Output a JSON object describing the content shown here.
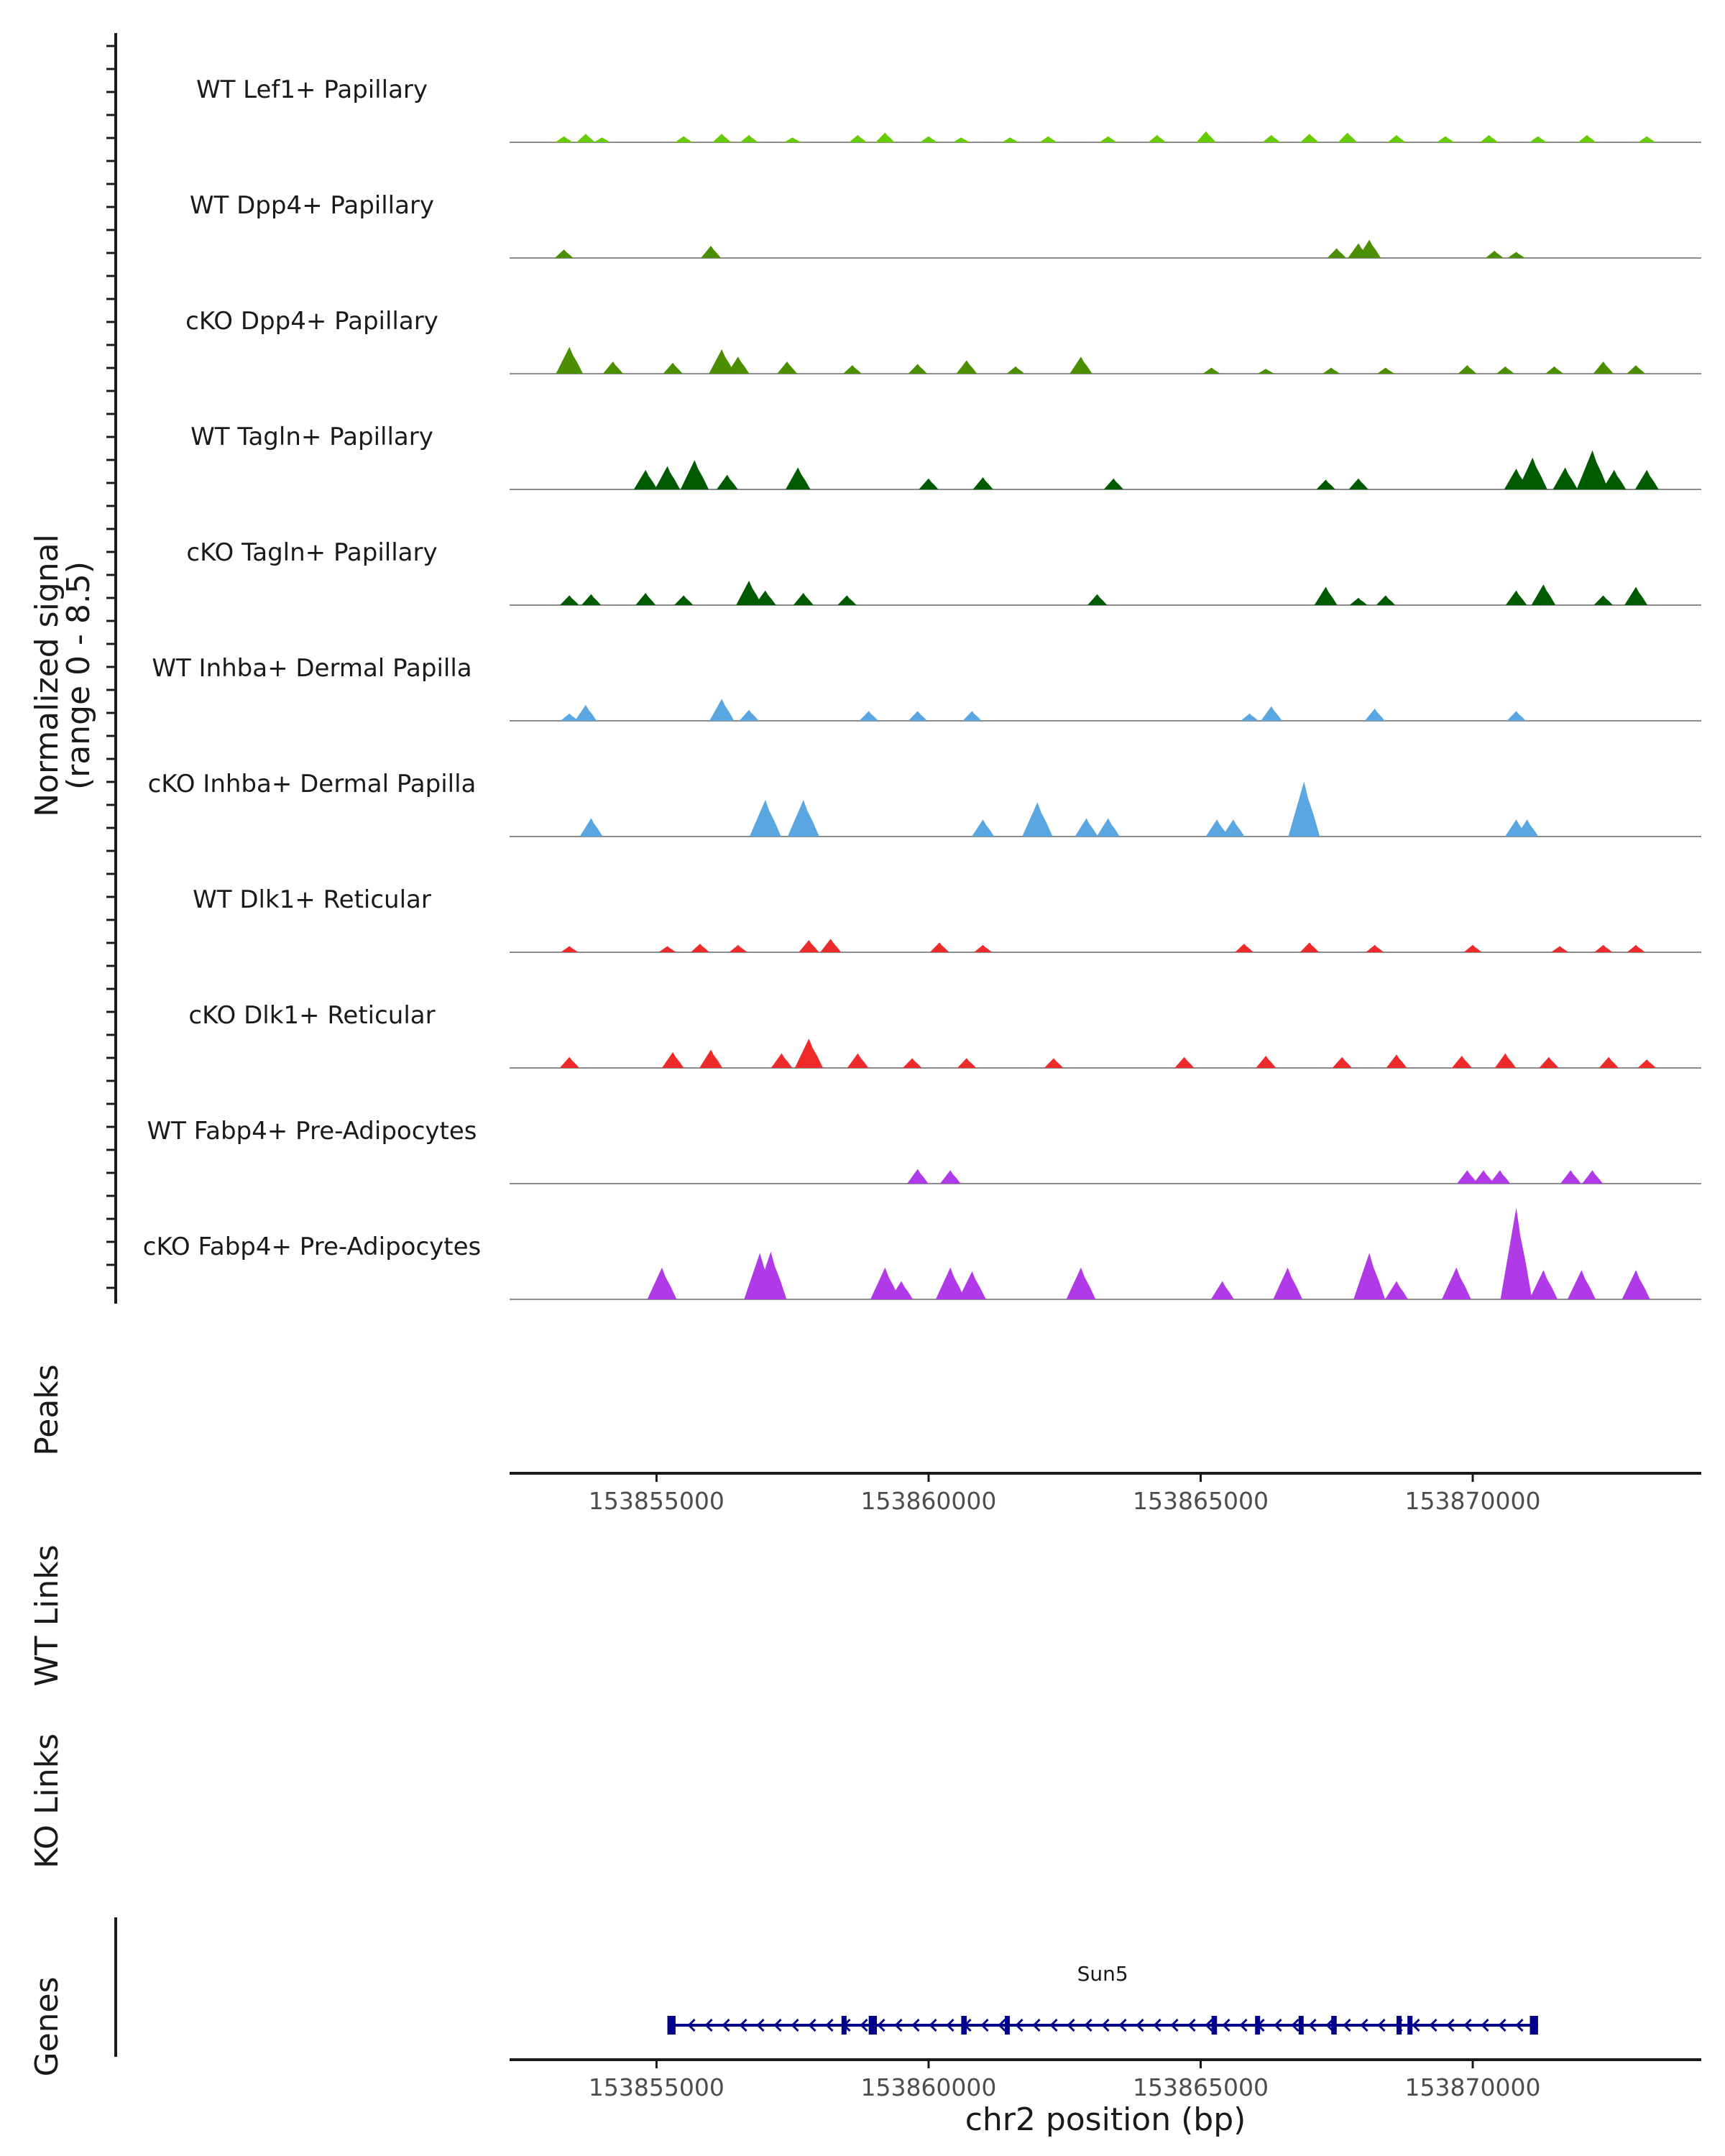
{
  "chart_data": {
    "type": "coverage",
    "ylabel_line1": "Normalized signal",
    "ylabel_line2": "(range 0 - 8.5)",
    "ylim": [
      0,
      8.5
    ],
    "xlim": [
      153852300,
      153874200
    ],
    "xlabel": "chr2 position (bp)",
    "x_ticks": [
      153855000,
      153860000,
      153865000,
      153870000
    ],
    "x_tick_labels": [
      "153855000",
      "153860000",
      "153865000",
      "153870000"
    ],
    "tracks": [
      {
        "name": "WT Lef1+ Papillary",
        "color": "#66cc00",
        "peaks": [
          [
            153853300,
            0.5
          ],
          [
            153853700,
            0.7
          ],
          [
            153854000,
            0.4
          ],
          [
            153855500,
            0.5
          ],
          [
            153856200,
            0.7
          ],
          [
            153856700,
            0.6
          ],
          [
            153857500,
            0.4
          ],
          [
            153858700,
            0.6
          ],
          [
            153859200,
            0.8
          ],
          [
            153860000,
            0.5
          ],
          [
            153860600,
            0.4
          ],
          [
            153861500,
            0.4
          ],
          [
            153862200,
            0.5
          ],
          [
            153863300,
            0.5
          ],
          [
            153864200,
            0.6
          ],
          [
            153865100,
            0.9
          ],
          [
            153866300,
            0.6
          ],
          [
            153867000,
            0.7
          ],
          [
            153867700,
            0.8
          ],
          [
            153868600,
            0.6
          ],
          [
            153869500,
            0.5
          ],
          [
            153870300,
            0.6
          ],
          [
            153871200,
            0.5
          ],
          [
            153872100,
            0.6
          ],
          [
            153873200,
            0.5
          ]
        ]
      },
      {
        "name": "WT Dpp4+ Papillary",
        "color": "#4b8f00",
        "peaks": [
          [
            153853300,
            0.7
          ],
          [
            153856000,
            1.0
          ],
          [
            153867500,
            0.8
          ],
          [
            153867900,
            1.2
          ],
          [
            153868100,
            1.5
          ],
          [
            153870400,
            0.6
          ],
          [
            153870800,
            0.5
          ]
        ]
      },
      {
        "name": "cKO Dpp4+ Papillary",
        "color": "#4b8f00",
        "peaks": [
          [
            153853400,
            2.2
          ],
          [
            153854200,
            1.0
          ],
          [
            153855300,
            0.9
          ],
          [
            153856200,
            2.0
          ],
          [
            153856500,
            1.4
          ],
          [
            153857400,
            1.0
          ],
          [
            153858600,
            0.7
          ],
          [
            153859800,
            0.8
          ],
          [
            153860700,
            1.1
          ],
          [
            153861600,
            0.6
          ],
          [
            153862800,
            1.4
          ],
          [
            153865200,
            0.5
          ],
          [
            153866200,
            0.4
          ],
          [
            153867400,
            0.5
          ],
          [
            153868400,
            0.5
          ],
          [
            153869900,
            0.7
          ],
          [
            153870600,
            0.6
          ],
          [
            153871500,
            0.6
          ],
          [
            153872400,
            1.0
          ],
          [
            153873000,
            0.7
          ]
        ]
      },
      {
        "name": "WT Tagln+ Papillary",
        "color": "#005a00",
        "peaks": [
          [
            153854800,
            1.6
          ],
          [
            153855200,
            1.9
          ],
          [
            153855700,
            2.4
          ],
          [
            153856300,
            1.2
          ],
          [
            153857600,
            1.8
          ],
          [
            153860000,
            0.9
          ],
          [
            153861000,
            1.0
          ],
          [
            153863400,
            0.9
          ],
          [
            153867300,
            0.8
          ],
          [
            153867900,
            0.9
          ],
          [
            153870800,
            1.7
          ],
          [
            153871100,
            2.6
          ],
          [
            153871700,
            1.8
          ],
          [
            153872200,
            3.2
          ],
          [
            153872600,
            1.6
          ],
          [
            153873200,
            1.6
          ]
        ]
      },
      {
        "name": "cKO Tagln+ Papillary",
        "color": "#005a00",
        "peaks": [
          [
            153853400,
            0.8
          ],
          [
            153853800,
            0.9
          ],
          [
            153854800,
            1.0
          ],
          [
            153855500,
            0.8
          ],
          [
            153856700,
            2.0
          ],
          [
            153857000,
            1.2
          ],
          [
            153857700,
            1.0
          ],
          [
            153858500,
            0.8
          ],
          [
            153863100,
            0.9
          ],
          [
            153867300,
            1.5
          ],
          [
            153867900,
            0.6
          ],
          [
            153868400,
            0.8
          ],
          [
            153870800,
            1.2
          ],
          [
            153871300,
            1.7
          ],
          [
            153872400,
            0.8
          ],
          [
            153873000,
            1.5
          ]
        ]
      },
      {
        "name": "WT Inhba+ Dermal Papilla",
        "color": "#5aa6e0",
        "peaks": [
          [
            153853400,
            0.6
          ],
          [
            153853700,
            1.3
          ],
          [
            153856200,
            1.8
          ],
          [
            153856700,
            0.9
          ],
          [
            153858900,
            0.8
          ],
          [
            153859800,
            0.8
          ],
          [
            153860800,
            0.8
          ],
          [
            153865900,
            0.6
          ],
          [
            153866300,
            1.2
          ],
          [
            153868200,
            1.0
          ],
          [
            153870800,
            0.8
          ]
        ]
      },
      {
        "name": "cKO Inhba+ Dermal Papilla",
        "color": "#5aa6e0",
        "peaks": [
          [
            153853800,
            1.5
          ],
          [
            153857000,
            3.0
          ],
          [
            153857700,
            3.0
          ],
          [
            153861000,
            1.4
          ],
          [
            153862000,
            2.8
          ],
          [
            153862900,
            1.5
          ],
          [
            153863300,
            1.5
          ],
          [
            153865300,
            1.4
          ],
          [
            153865600,
            1.4
          ],
          [
            153866900,
            4.5
          ],
          [
            153870800,
            1.4
          ],
          [
            153871000,
            1.4
          ]
        ]
      },
      {
        "name": "WT Dlk1+ Reticular",
        "color": "#ee2a2a",
        "peaks": [
          [
            153853400,
            0.5
          ],
          [
            153855200,
            0.5
          ],
          [
            153855800,
            0.7
          ],
          [
            153856500,
            0.6
          ],
          [
            153857800,
            1.0
          ],
          [
            153858200,
            1.1
          ],
          [
            153860200,
            0.8
          ],
          [
            153861000,
            0.6
          ],
          [
            153865800,
            0.7
          ],
          [
            153867000,
            0.8
          ],
          [
            153868200,
            0.6
          ],
          [
            153870000,
            0.6
          ],
          [
            153871600,
            0.5
          ],
          [
            153872400,
            0.6
          ],
          [
            153873000,
            0.6
          ]
        ]
      },
      {
        "name": "cKO Dlk1+ Reticular",
        "color": "#ee2a2a",
        "peaks": [
          [
            153853400,
            0.9
          ],
          [
            153855300,
            1.3
          ],
          [
            153856000,
            1.5
          ],
          [
            153857300,
            1.2
          ],
          [
            153857800,
            2.4
          ],
          [
            153858700,
            1.2
          ],
          [
            153859700,
            0.8
          ],
          [
            153860700,
            0.8
          ],
          [
            153862300,
            0.8
          ],
          [
            153864700,
            0.9
          ],
          [
            153866200,
            1.0
          ],
          [
            153867600,
            0.9
          ],
          [
            153868600,
            1.1
          ],
          [
            153869800,
            1.0
          ],
          [
            153870600,
            1.2
          ],
          [
            153871400,
            0.9
          ],
          [
            153872500,
            0.9
          ],
          [
            153873200,
            0.7
          ]
        ]
      },
      {
        "name": "WT Fabp4+ Pre-Adipocytes",
        "color": "#b03ae8",
        "peaks": [
          [
            153859800,
            1.2
          ],
          [
            153860400,
            1.1
          ],
          [
            153869900,
            1.1
          ],
          [
            153870200,
            1.1
          ],
          [
            153870500,
            1.1
          ],
          [
            153871800,
            1.1
          ],
          [
            153872200,
            1.1
          ]
        ]
      },
      {
        "name": "cKO Fabp4+ Pre-Adipocytes",
        "color": "#b03ae8",
        "peaks": [
          [
            153855100,
            2.6
          ],
          [
            153856900,
            3.8
          ],
          [
            153857100,
            3.9
          ],
          [
            153859200,
            2.6
          ],
          [
            153859500,
            1.5
          ],
          [
            153860400,
            2.6
          ],
          [
            153860800,
            2.3
          ],
          [
            153862800,
            2.6
          ],
          [
            153865400,
            1.5
          ],
          [
            153866600,
            2.6
          ],
          [
            153868100,
            3.8
          ],
          [
            153868600,
            1.5
          ],
          [
            153869700,
            2.6
          ],
          [
            153870800,
            7.5
          ],
          [
            153871300,
            2.4
          ],
          [
            153872000,
            2.4
          ],
          [
            153873000,
            2.4
          ]
        ]
      }
    ],
    "gene": {
      "name": "Sun5",
      "strand": "-",
      "start": 153855200,
      "end": 153871200,
      "exons": [
        [
          153855200,
          153855350
        ],
        [
          153858400,
          153858450
        ],
        [
          153858900,
          153859050
        ],
        [
          153860600,
          153860700
        ],
        [
          153861400,
          153861450
        ],
        [
          153865200,
          153865300
        ],
        [
          153866000,
          153866050
        ],
        [
          153866800,
          153866850
        ],
        [
          153867400,
          153867500
        ],
        [
          153868600,
          153868650
        ],
        [
          153868800,
          153868850
        ],
        [
          153871050,
          153871200
        ]
      ]
    }
  },
  "panels": {
    "peaks_label": "Peaks",
    "wt_links_label": "WT Links",
    "ko_links_label": "KO Links",
    "genes_label": "Genes"
  }
}
